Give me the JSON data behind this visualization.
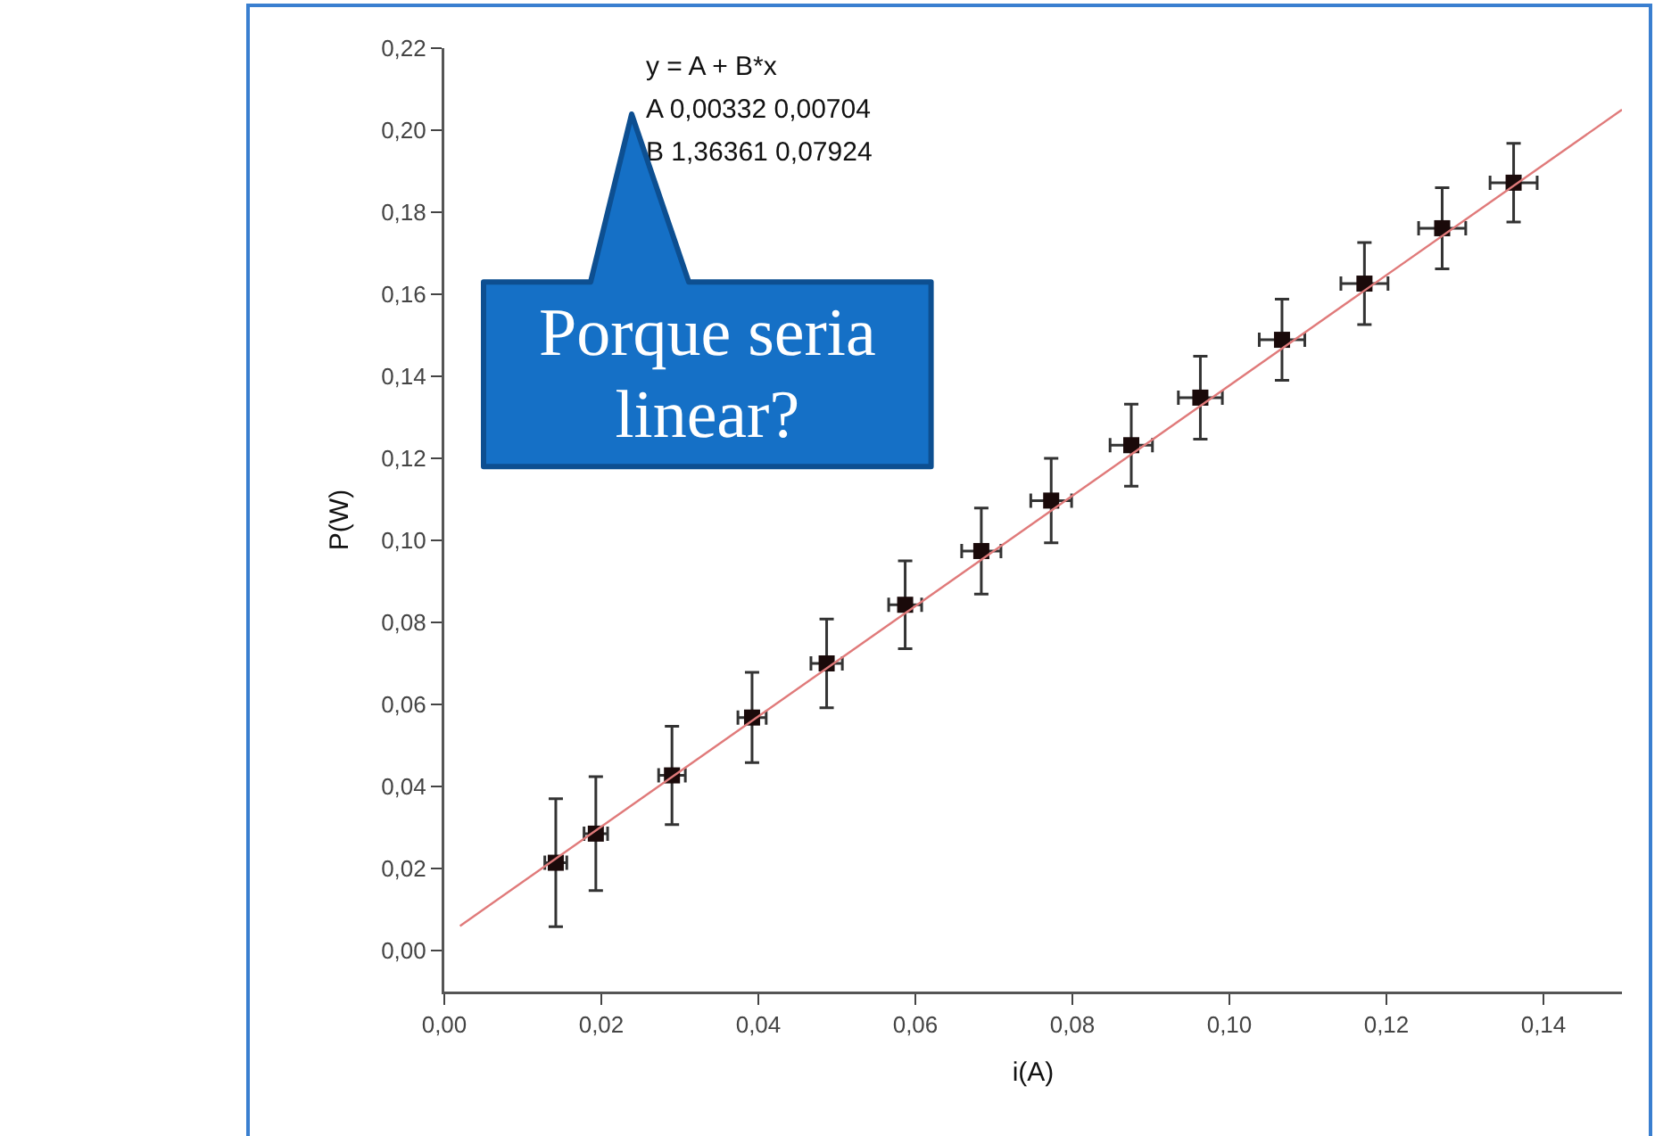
{
  "chart_data": {
    "type": "scatter",
    "xlabel": "i(A)",
    "ylabel": "P(W)",
    "xlim": [
      0,
      0.15
    ],
    "ylim": [
      -0.01,
      0.22
    ],
    "xticks": [
      {
        "value": 0,
        "label": "0,00"
      },
      {
        "value": 0.02,
        "label": "0,02"
      },
      {
        "value": 0.04,
        "label": "0,04"
      },
      {
        "value": 0.06,
        "label": "0,06"
      },
      {
        "value": 0.08,
        "label": "0,08"
      },
      {
        "value": 0.1,
        "label": "0,10"
      },
      {
        "value": 0.12,
        "label": "0,12"
      },
      {
        "value": 0.14,
        "label": "0,14"
      }
    ],
    "yticks": [
      {
        "value": 0,
        "label": "0,00"
      },
      {
        "value": 0.02,
        "label": "0,02"
      },
      {
        "value": 0.04,
        "label": "0,04"
      },
      {
        "value": 0.06,
        "label": "0,06"
      },
      {
        "value": 0.08,
        "label": "0,08"
      },
      {
        "value": 0.1,
        "label": "0,10"
      },
      {
        "value": 0.12,
        "label": "0,12"
      },
      {
        "value": 0.14,
        "label": "0,14"
      },
      {
        "value": 0.16,
        "label": "0,16"
      },
      {
        "value": 0.18,
        "label": "0,18"
      },
      {
        "value": 0.2,
        "label": "0,20"
      },
      {
        "value": 0.22,
        "label": "0,22"
      }
    ],
    "grid": false,
    "marker": "square",
    "series": [
      {
        "color": "#1a0a0a",
        "x": [
          0.0142,
          0.0193,
          0.029,
          0.0392,
          0.0487,
          0.0587,
          0.0684,
          0.0773,
          0.0875,
          0.0963,
          0.1067,
          0.1172,
          0.1271,
          0.1362
        ],
        "values": [
          0.0214,
          0.0285,
          0.0427,
          0.0568,
          0.07,
          0.0843,
          0.0974,
          0.1097,
          0.1232,
          0.1348,
          0.1489,
          0.1626,
          0.1761,
          0.1872
        ],
        "errors": [
          0.0156,
          0.0139,
          0.012,
          0.011,
          0.0108,
          0.0107,
          0.0105,
          0.0103,
          0.01,
          0.0101,
          0.0099,
          0.01,
          0.0099,
          0.0096
        ],
        "xerrors": [
          0.0014,
          0.0015,
          0.0017,
          0.0018,
          0.002,
          0.0021,
          0.0025,
          0.0026,
          0.0027,
          0.0028,
          0.0029,
          0.003,
          0.003,
          0.003
        ]
      },
      {
        "type": "line",
        "color": "#e07a7a",
        "x": [
          0.002,
          0.15
        ],
        "values": [
          0.006,
          0.205
        ],
        "line_style": "solid",
        "marker": "none"
      }
    ],
    "annotations": [
      "y = A + B*x\nA 0,00332 0,00704\nB 1,36361 0,07924",
      "Porque seria\nlinear?"
    ]
  }
}
